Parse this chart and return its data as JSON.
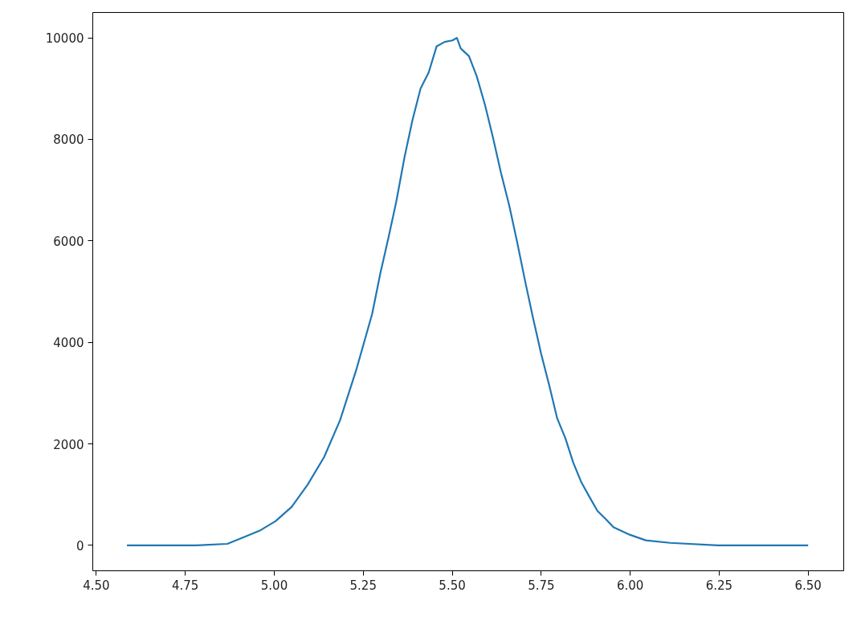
{
  "chart_data": {
    "type": "line",
    "x": [
      4.586,
      4.778,
      4.868,
      4.914,
      4.959,
      5.004,
      5.049,
      5.094,
      5.14,
      5.185,
      5.23,
      5.275,
      5.298,
      5.321,
      5.343,
      5.366,
      5.388,
      5.411,
      5.434,
      5.456,
      5.479,
      5.501,
      5.513,
      5.524,
      5.547,
      5.569,
      5.592,
      5.614,
      5.637,
      5.66,
      5.682,
      5.705,
      5.727,
      5.75,
      5.773,
      5.795,
      5.818,
      5.84,
      5.863,
      5.886,
      5.908,
      5.931,
      5.953,
      5.999,
      6.044,
      6.112,
      6.247,
      6.5
    ],
    "series": [
      {
        "color": "#1f77b4",
        "values": [
          0,
          0,
          30,
          160,
          290,
          480,
          760,
          1200,
          1740,
          2470,
          3450,
          4560,
          5360,
          6070,
          6780,
          7650,
          8370,
          9000,
          9320,
          9830,
          9920,
          9950,
          10000,
          9790,
          9640,
          9240,
          8680,
          8050,
          7340,
          6700,
          5990,
          5200,
          4480,
          3770,
          3140,
          2500,
          2110,
          1630,
          1240,
          950,
          680,
          520,
          360,
          210,
          100,
          50,
          0,
          0
        ]
      }
    ],
    "xlim": [
      4.49,
      6.6
    ],
    "ylim": [
      -500,
      10500
    ],
    "xticks": [
      {
        "value": 4.5,
        "label": "4.50"
      },
      {
        "value": 4.75,
        "label": "4.75"
      },
      {
        "value": 5.0,
        "label": "5.00"
      },
      {
        "value": 5.25,
        "label": "5.25"
      },
      {
        "value": 5.5,
        "label": "5.50"
      },
      {
        "value": 5.75,
        "label": "5.75"
      },
      {
        "value": 6.0,
        "label": "6.00"
      },
      {
        "value": 6.25,
        "label": "6.25"
      },
      {
        "value": 6.5,
        "label": "6.50"
      }
    ],
    "yticks": [
      0,
      2000,
      4000,
      6000,
      8000,
      10000
    ]
  }
}
